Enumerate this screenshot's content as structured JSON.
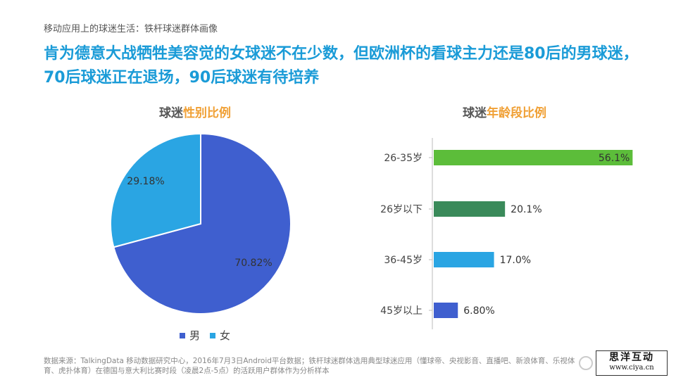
{
  "breadcrumb": "移动应用上的球迷生活：铁杆球迷群体画像",
  "headline": "肯为德意大战牺牲美容觉的女球迷不在少数，但欧洲杯的看球主力还是80后的男球迷，70后球迷正在退场，90后球迷有待培养",
  "pie_title": {
    "prefix": "球迷",
    "accent": "性别比例"
  },
  "bar_title": {
    "prefix": "球迷",
    "accent": "年龄段比例"
  },
  "legend": [
    {
      "label": "男",
      "color": "#3f5fcf"
    },
    {
      "label": "女",
      "color": "#2aa5e3"
    }
  ],
  "footnote": "数据来源：TalkingData 移动数据研究中心，2016年7月3日Android平台数据；铁杆球迷群体选用典型球迷应用（懂球帝、央视影音、直播吧、新浪体育、乐视体育、虎扑体育）在德国与意大利比赛时段（凌晨2点-5点）的活跃用户群体作为分析样本",
  "watermark": {
    "title": "思洋互动",
    "url": "www.ciya.cn"
  },
  "chart_data": [
    {
      "type": "pie",
      "title": "球迷性别比例",
      "slices": [
        {
          "name": "男",
          "value": 70.82,
          "label": "70.82%",
          "color": "#3f5fcf"
        },
        {
          "name": "女",
          "value": 29.18,
          "label": "29.18%",
          "color": "#2aa5e3"
        }
      ]
    },
    {
      "type": "bar",
      "orientation": "horizontal",
      "title": "球迷年龄段比例",
      "categories": [
        "26-35岁",
        "26岁以下",
        "36-45岁",
        "45岁以上"
      ],
      "values": [
        56.1,
        20.1,
        17.0,
        6.8
      ],
      "labels": [
        "56.1%",
        "20.1%",
        "17.0%",
        "6.80%"
      ],
      "colors": [
        "#5cbd3a",
        "#3a8a5a",
        "#2aa5e3",
        "#3f5fcf"
      ],
      "xlim": [
        0,
        60
      ]
    }
  ]
}
